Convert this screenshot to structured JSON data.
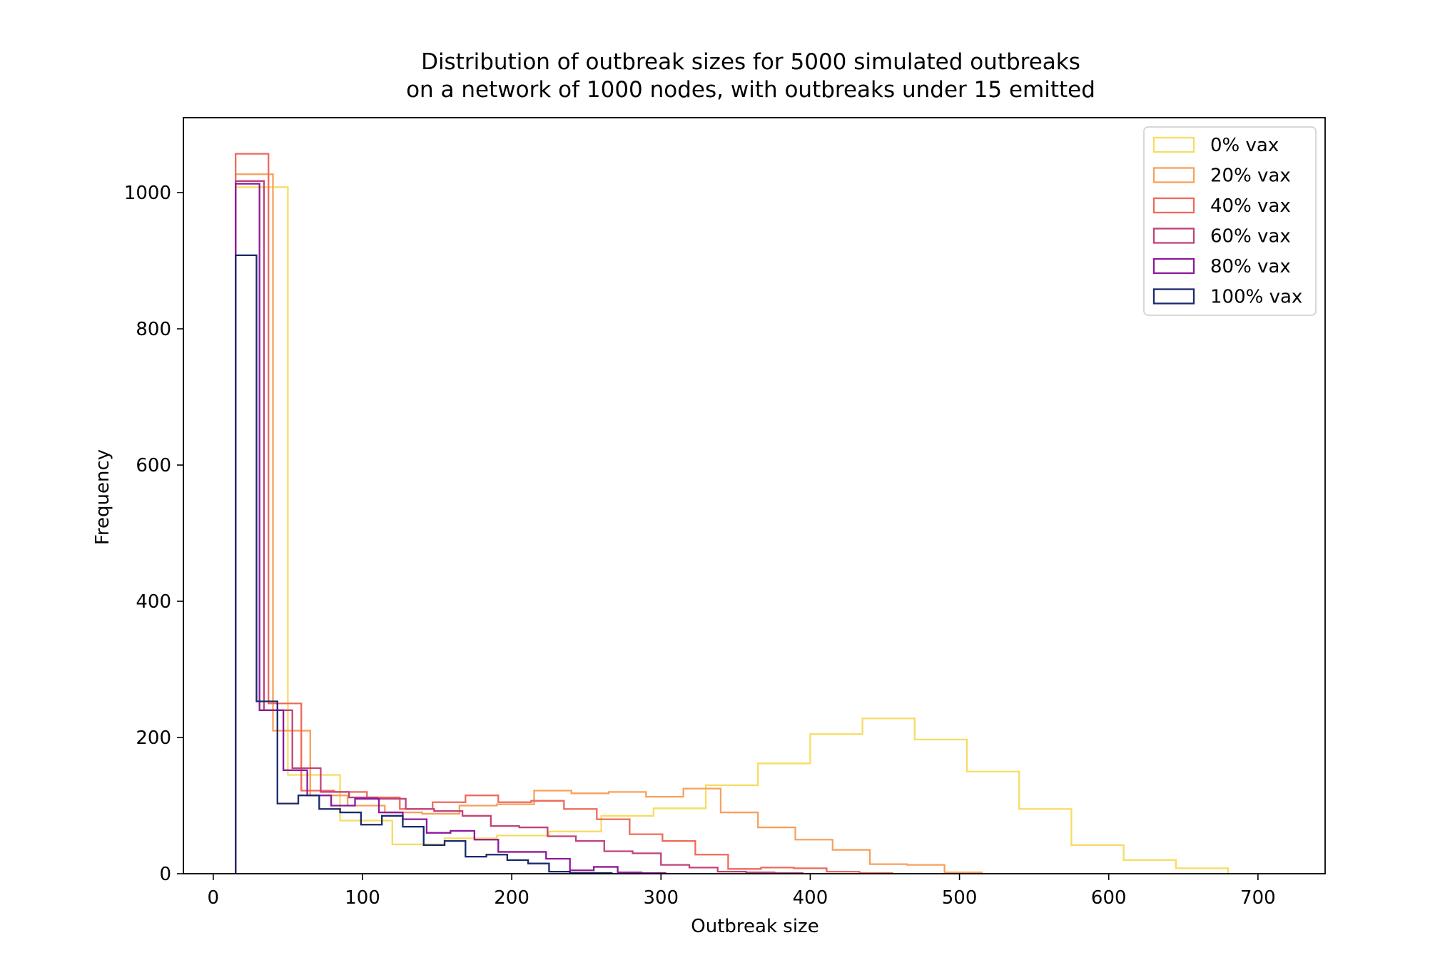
{
  "chart_data": {
    "type": "histogram",
    "title": [
      "Distribution of outbreak sizes for 5000 simulated outbreaks",
      "on a network of 1000 nodes, with outbreaks under 15 emitted"
    ],
    "xlabel": "Outbreak size",
    "ylabel": "Frequency",
    "xlim": [
      -20,
      745
    ],
    "ylim": [
      0,
      1110
    ],
    "xticks": [
      0,
      100,
      200,
      300,
      400,
      500,
      600,
      700
    ],
    "yticks": [
      0,
      200,
      400,
      600,
      800,
      1000
    ],
    "grid": false,
    "legend_position": "top-right",
    "series": [
      {
        "name": "0% vax",
        "color": "#f7dc62",
        "edges": [
          15,
          50,
          85,
          120,
          155,
          190,
          225,
          260,
          295,
          330,
          365,
          400,
          435,
          470,
          505,
          540,
          575,
          610,
          645,
          680
        ],
        "counts": [
          1008,
          145,
          78,
          43,
          52,
          56,
          62,
          85,
          96,
          130,
          162,
          205,
          228,
          197,
          150,
          95,
          42,
          20,
          8
        ]
      },
      {
        "name": "20% vax",
        "color": "#f8a05c",
        "edges": [
          15,
          40,
          65,
          90,
          115,
          140,
          165,
          190,
          215,
          240,
          265,
          290,
          315,
          340,
          365,
          390,
          415,
          440,
          465,
          490,
          515
        ],
        "counts": [
          1027,
          210,
          115,
          100,
          90,
          88,
          100,
          102,
          122,
          118,
          120,
          113,
          125,
          90,
          68,
          50,
          35,
          14,
          13,
          2
        ]
      },
      {
        "name": "40% vax",
        "color": "#ee6a5b",
        "edges": [
          15,
          37,
          59,
          81,
          103,
          125,
          147,
          169,
          191,
          213,
          235,
          257,
          279,
          301,
          323,
          345,
          367,
          389,
          411,
          433,
          455
        ],
        "counts": [
          1057,
          250,
          122,
          120,
          112,
          95,
          105,
          115,
          105,
          107,
          95,
          80,
          58,
          48,
          28,
          7,
          9,
          8,
          3,
          1
        ]
      },
      {
        "name": "60% vax",
        "color": "#c0437a",
        "edges": [
          15,
          34,
          53,
          72,
          91,
          110,
          129,
          148,
          167,
          186,
          205,
          224,
          243,
          262,
          281,
          300,
          319,
          338,
          357,
          376,
          395
        ],
        "counts": [
          1017,
          240,
          155,
          120,
          112,
          110,
          95,
          92,
          85,
          70,
          68,
          55,
          48,
          33,
          30,
          13,
          9,
          3,
          2,
          1
        ]
      },
      {
        "name": "80% vax",
        "color": "#8c1a9c",
        "edges": [
          15,
          31,
          47,
          63,
          79,
          95,
          111,
          127,
          143,
          159,
          175,
          191,
          207,
          223,
          239,
          255,
          271,
          287,
          303
        ],
        "counts": [
          1013,
          240,
          152,
          115,
          100,
          110,
          90,
          80,
          60,
          63,
          50,
          32,
          32,
          22,
          5,
          10,
          2,
          1
        ]
      },
      {
        "name": "100% vax",
        "color": "#1a2a6c",
        "edges": [
          15,
          29,
          43,
          57,
          71,
          85,
          99,
          113,
          127,
          141,
          155,
          169,
          183,
          197,
          211,
          225,
          239,
          253,
          267
        ],
        "counts": [
          908,
          253,
          103,
          115,
          95,
          90,
          72,
          85,
          69,
          42,
          48,
          25,
          28,
          20,
          15,
          3,
          1,
          1
        ]
      }
    ]
  }
}
